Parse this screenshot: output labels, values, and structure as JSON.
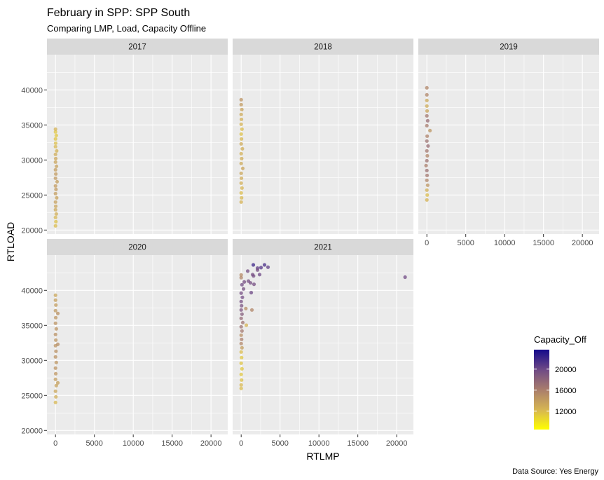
{
  "chart_data": {
    "type": "scatter",
    "title": "February in SPP: SPP South",
    "subtitle": "Comparing LMP, Load, Capacity Offline",
    "xlabel": "RTLMP",
    "ylabel": "RTLOAD",
    "caption": "Data Source: Yes Energy",
    "xlim": [
      -1100,
      22150
    ],
    "ylim": [
      19430,
      45030
    ],
    "x_ticks": [
      0,
      5000,
      10000,
      15000,
      20000
    ],
    "y_ticks": [
      20000,
      25000,
      30000,
      35000,
      40000
    ],
    "grid": true,
    "facet_by": "year",
    "color": {
      "variable": "Capacity_Off",
      "low_color": "#FFFF00",
      "high_color": "#140A8B",
      "limits": [
        8500,
        23700
      ],
      "ticks": [
        12000,
        16000,
        20000
      ],
      "legend_position": "right-bottom"
    },
    "point_fields": [
      "RTLMP",
      "RTLOAD",
      "Capacity_Off"
    ],
    "panels": [
      {
        "label": "2017",
        "points": [
          [
            0,
            20600,
            12000
          ],
          [
            50,
            21200,
            11800
          ],
          [
            0,
            21800,
            12300
          ],
          [
            100,
            22300,
            12800
          ],
          [
            0,
            22900,
            13200
          ],
          [
            30,
            23400,
            13500
          ],
          [
            0,
            24000,
            13800
          ],
          [
            150,
            24600,
            13600
          ],
          [
            0,
            25200,
            14000
          ],
          [
            60,
            25800,
            14200
          ],
          [
            0,
            26300,
            14100
          ],
          [
            200,
            26900,
            13900
          ],
          [
            0,
            27400,
            14300
          ],
          [
            40,
            28000,
            14200
          ],
          [
            0,
            28600,
            14000
          ],
          [
            120,
            29100,
            13700
          ],
          [
            0,
            29700,
            13500
          ],
          [
            30,
            30200,
            13300
          ],
          [
            0,
            30800,
            13000
          ],
          [
            150,
            31300,
            12600
          ],
          [
            0,
            31900,
            12200
          ],
          [
            20,
            32400,
            11900
          ],
          [
            0,
            33000,
            11600
          ],
          [
            100,
            33500,
            11400
          ],
          [
            0,
            34000,
            11500
          ],
          [
            0,
            34400,
            12500
          ]
        ]
      },
      {
        "label": "2018",
        "points": [
          [
            0,
            24000,
            12500
          ],
          [
            50,
            24600,
            12200
          ],
          [
            0,
            25300,
            12000
          ],
          [
            100,
            26000,
            12400
          ],
          [
            0,
            26700,
            12800
          ],
          [
            30,
            27400,
            13100
          ],
          [
            0,
            28100,
            13300
          ],
          [
            200,
            28800,
            13500
          ],
          [
            0,
            29500,
            13200
          ],
          [
            60,
            30200,
            13000
          ],
          [
            0,
            30900,
            12700
          ],
          [
            150,
            31600,
            12900
          ],
          [
            0,
            32300,
            13100
          ],
          [
            40,
            33000,
            12300
          ],
          [
            0,
            33700,
            11800
          ],
          [
            100,
            34400,
            12000
          ],
          [
            0,
            35100,
            12500
          ],
          [
            30,
            35800,
            12800
          ],
          [
            0,
            36500,
            13200
          ],
          [
            80,
            37200,
            13600
          ],
          [
            0,
            37900,
            14200
          ],
          [
            0,
            38600,
            14600
          ]
        ]
      },
      {
        "label": "2019",
        "points": [
          [
            0,
            24300,
            12500
          ],
          [
            50,
            25000,
            12000
          ],
          [
            0,
            25700,
            12800
          ],
          [
            100,
            26400,
            14500
          ],
          [
            0,
            27100,
            15500
          ],
          [
            30,
            27800,
            16500
          ],
          [
            0,
            28500,
            17000
          ],
          [
            -100,
            29200,
            16000
          ],
          [
            0,
            29900,
            16800
          ],
          [
            60,
            30600,
            15500
          ],
          [
            0,
            31300,
            16500
          ],
          [
            150,
            32000,
            17200
          ],
          [
            0,
            32700,
            16800
          ],
          [
            40,
            33400,
            15800
          ],
          [
            400,
            34200,
            14500
          ],
          [
            0,
            34900,
            16200
          ],
          [
            100,
            35600,
            17200
          ],
          [
            0,
            36300,
            16500
          ],
          [
            30,
            37000,
            13500
          ],
          [
            0,
            37700,
            13000
          ],
          [
            0,
            38500,
            13200
          ],
          [
            0,
            39300,
            15500
          ],
          [
            0,
            40300,
            15500
          ]
        ]
      },
      {
        "label": "2020",
        "points": [
          [
            0,
            24000,
            12200
          ],
          [
            50,
            24800,
            12800
          ],
          [
            0,
            25600,
            13300
          ],
          [
            100,
            26400,
            13600
          ],
          [
            300,
            26800,
            13800
          ],
          [
            0,
            27300,
            14000
          ],
          [
            30,
            28100,
            14400
          ],
          [
            0,
            28900,
            14600
          ],
          [
            100,
            29700,
            14500
          ],
          [
            0,
            30500,
            14700
          ],
          [
            60,
            31300,
            14800
          ],
          [
            0,
            32100,
            14600
          ],
          [
            300,
            32300,
            15000
          ],
          [
            40,
            32900,
            14500
          ],
          [
            0,
            33700,
            14800
          ],
          [
            100,
            34500,
            14600
          ],
          [
            0,
            35300,
            14700
          ],
          [
            30,
            36100,
            14500
          ],
          [
            300,
            36700,
            14800
          ],
          [
            0,
            37100,
            14300
          ],
          [
            50,
            37900,
            14000
          ],
          [
            0,
            38600,
            13800
          ],
          [
            0,
            39300,
            13400
          ]
        ]
      },
      {
        "label": "2021",
        "points": [
          [
            0,
            26000,
            12000
          ],
          [
            0,
            26500,
            12200
          ],
          [
            50,
            27200,
            11800
          ],
          [
            0,
            28000,
            11500
          ],
          [
            100,
            28800,
            11400
          ],
          [
            0,
            29600,
            11600
          ],
          [
            50,
            30400,
            11500
          ],
          [
            0,
            31200,
            12000
          ],
          [
            100,
            31800,
            14000
          ],
          [
            0,
            32400,
            15500
          ],
          [
            50,
            33000,
            16000
          ],
          [
            0,
            33600,
            15000
          ],
          [
            100,
            34200,
            16500
          ],
          [
            0,
            34800,
            17000
          ],
          [
            200,
            35400,
            16800
          ],
          [
            0,
            36000,
            17500
          ],
          [
            100,
            36600,
            18500
          ],
          [
            0,
            37200,
            19000
          ],
          [
            600,
            37400,
            15000
          ],
          [
            50,
            37800,
            19200
          ],
          [
            0,
            38400,
            19500
          ],
          [
            150,
            39000,
            19600
          ],
          [
            0,
            39600,
            19500
          ],
          [
            300,
            40200,
            19400
          ],
          [
            100,
            40800,
            19700
          ],
          [
            400,
            41200,
            19500
          ],
          [
            0,
            41800,
            15500
          ],
          [
            0,
            42200,
            15200
          ],
          [
            1560,
            43630,
            22000
          ],
          [
            3000,
            43630,
            21500
          ],
          [
            3450,
            43300,
            20500
          ],
          [
            2550,
            43240,
            21000
          ],
          [
            2100,
            43170,
            20500
          ],
          [
            2100,
            42900,
            19500
          ],
          [
            840,
            42740,
            19500
          ],
          [
            1470,
            42250,
            19500
          ],
          [
            1590,
            42050,
            19500
          ],
          [
            2370,
            42250,
            20000
          ],
          [
            1200,
            41060,
            19500
          ],
          [
            1650,
            40860,
            19500
          ],
          [
            930,
            41320,
            19500
          ],
          [
            1290,
            39670,
            20000
          ],
          [
            1380,
            37200,
            15500
          ],
          [
            660,
            35020,
            12500
          ],
          [
            21080,
            41880,
            19800
          ]
        ]
      }
    ]
  }
}
